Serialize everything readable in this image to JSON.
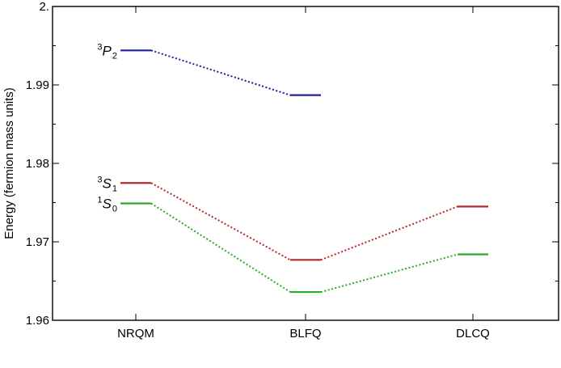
{
  "chart_data": {
    "type": "line",
    "ylabel": "Energy (fermion mass units)",
    "xlabel": "",
    "title": "",
    "categories": [
      "NRQM",
      "BLFQ",
      "DLCQ"
    ],
    "ylim": [
      1.96,
      2.0
    ],
    "yticks": [
      1.96,
      1.97,
      1.98,
      1.99,
      2.0
    ],
    "ytick_labels": [
      "1.96",
      "1.97",
      "1.98",
      "1.99",
      "2."
    ],
    "series": [
      {
        "name": "3P2",
        "label": {
          "sup": "3",
          "main": "P",
          "sub": "2"
        },
        "color": "#1f1fa0",
        "values": [
          1.9944,
          1.9887,
          null
        ]
      },
      {
        "name": "3S1",
        "label": {
          "sup": "3",
          "main": "S",
          "sub": "1"
        },
        "color": "#b22a2a",
        "values": [
          1.9775,
          1.9677,
          1.9745
        ]
      },
      {
        "name": "1S0",
        "label": {
          "sup": "1",
          "main": "S",
          "sub": "0"
        },
        "color": "#2aab2a",
        "values": [
          1.9749,
          1.9636,
          1.9684
        ]
      }
    ]
  }
}
